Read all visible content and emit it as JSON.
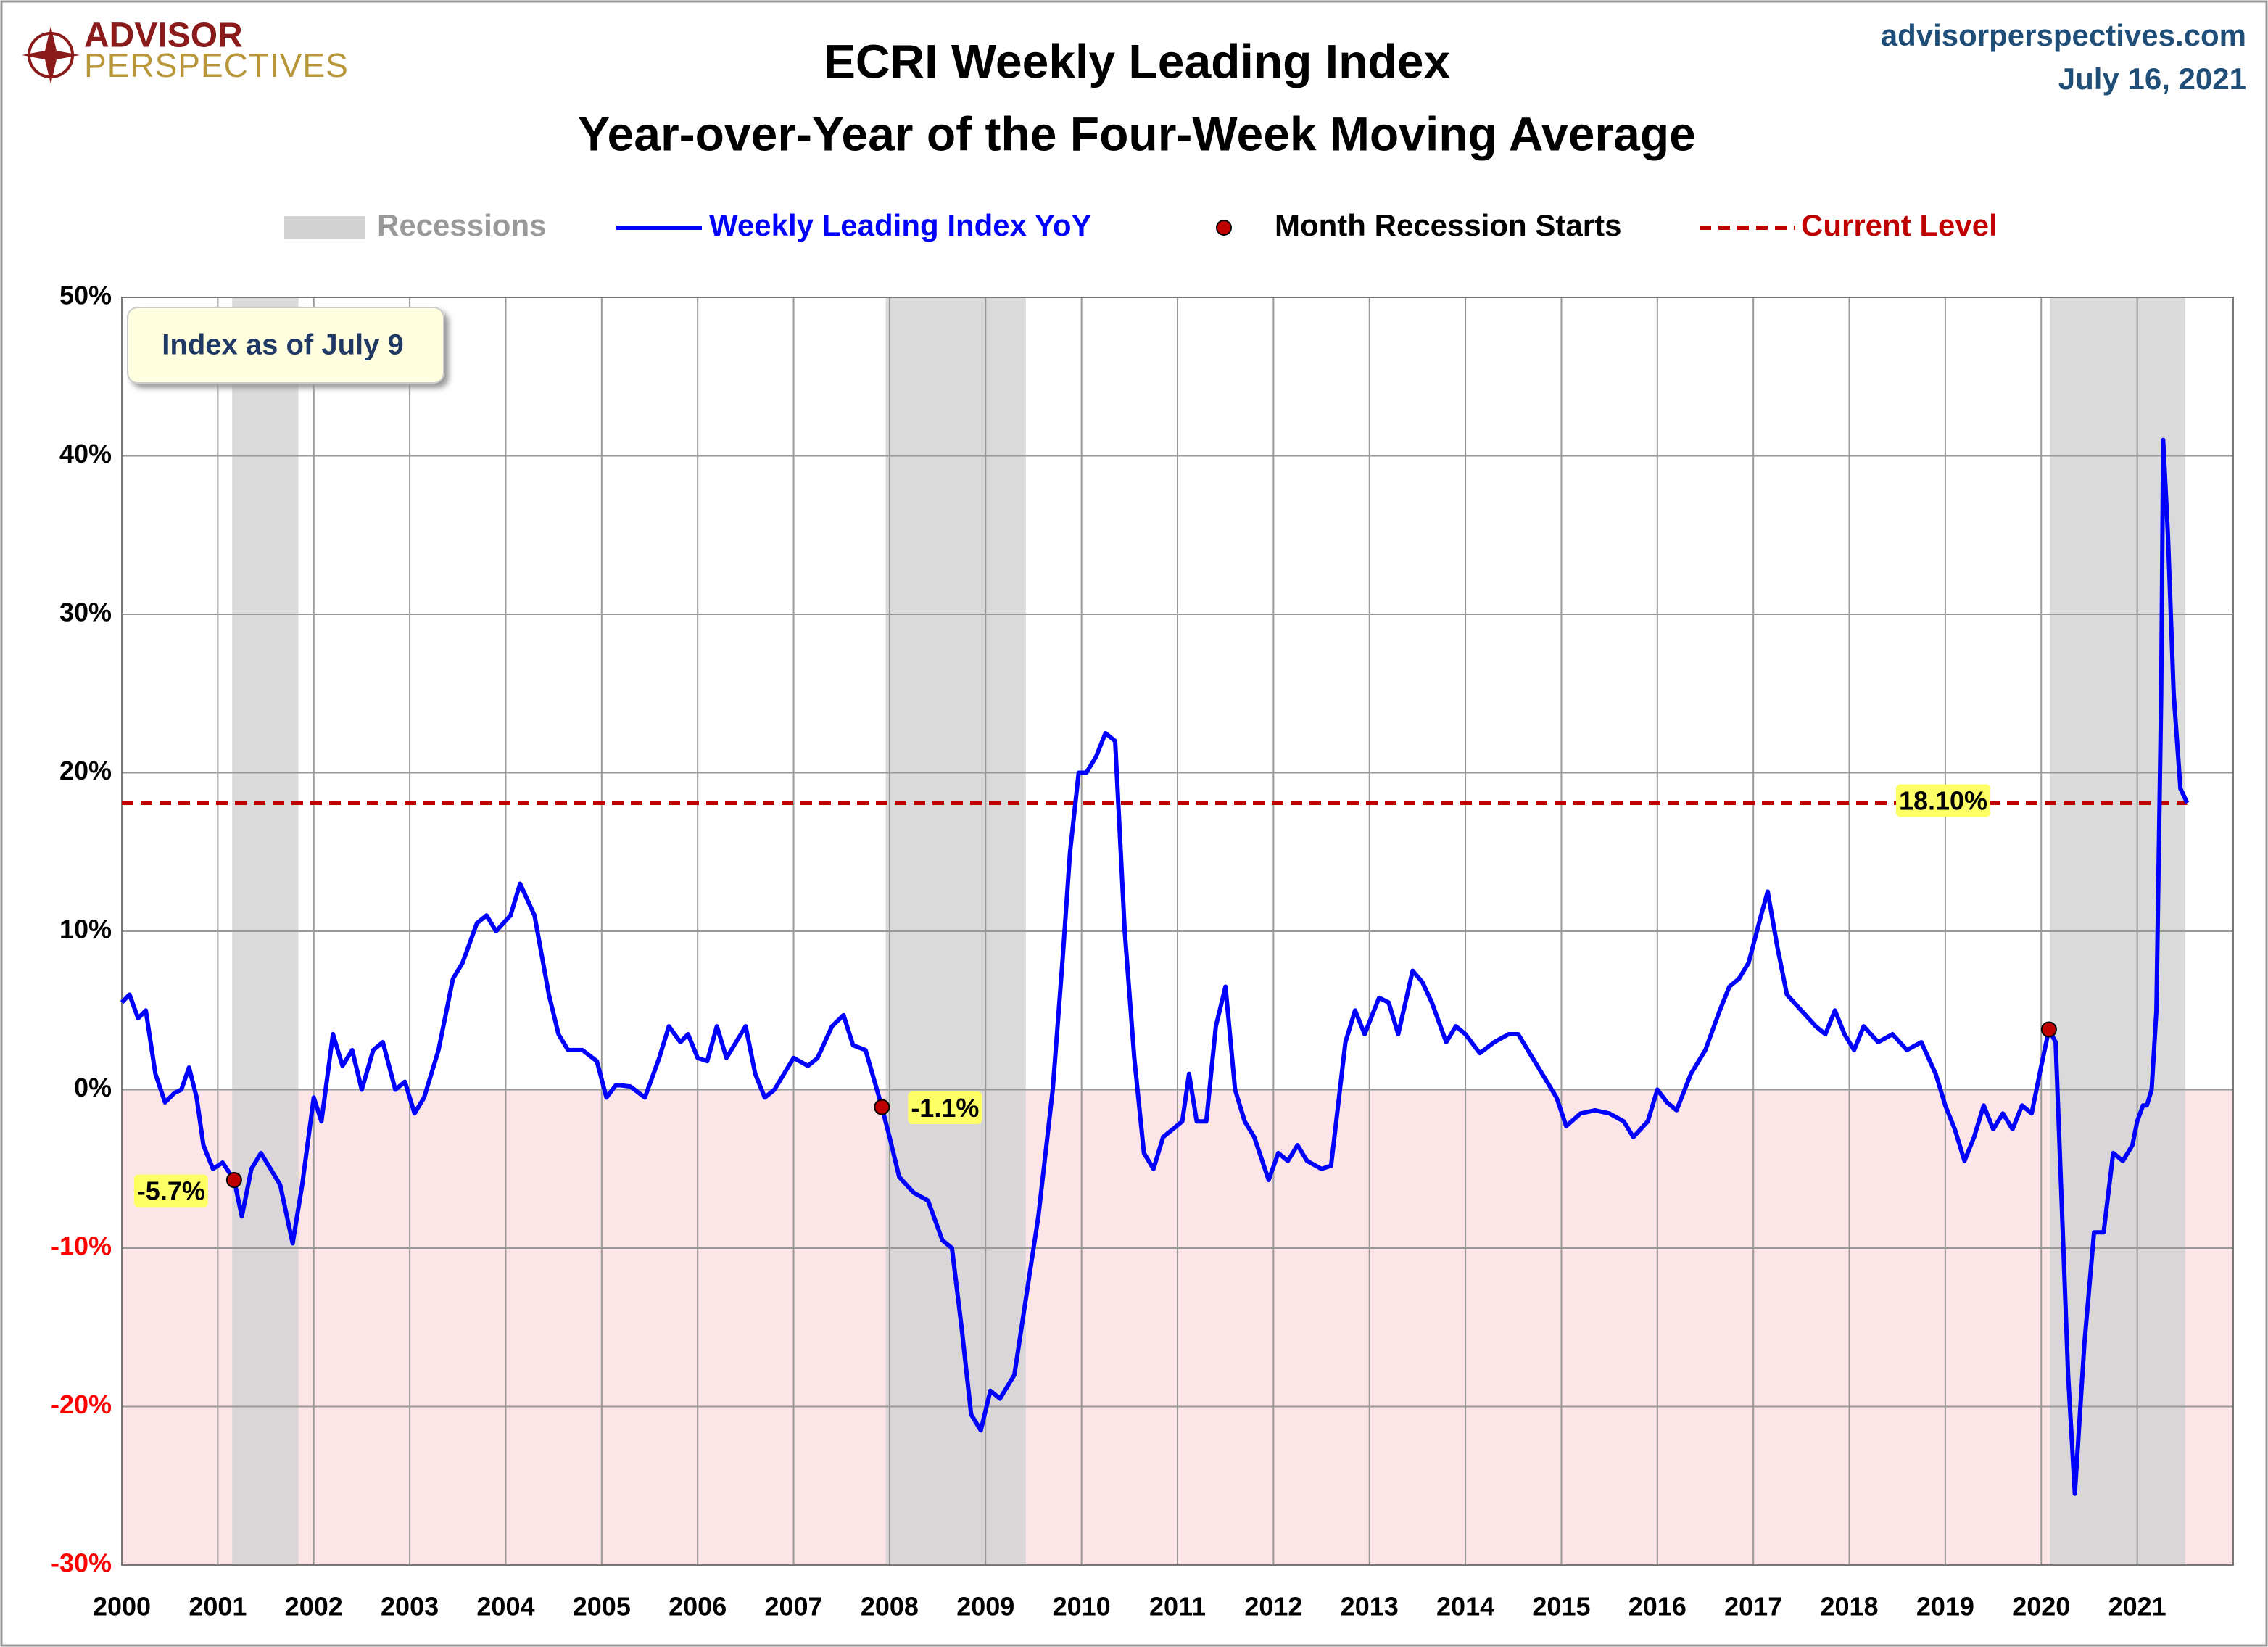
{
  "logo": {
    "line1": "ADVISOR",
    "line2": "PERSPECTIVES"
  },
  "site": "advisorperspectives.com",
  "date": "July 16, 2021",
  "chart_data": {
    "type": "line",
    "title": "ECRI Weekly Leading Index",
    "subtitle": "Year-over-Year of the Four-Week Moving Average",
    "annotation": "Index as of July 9",
    "xlim": [
      2000,
      2022
    ],
    "xticks": [
      2000,
      2001,
      2002,
      2003,
      2004,
      2005,
      2006,
      2007,
      2008,
      2009,
      2010,
      2011,
      2012,
      2013,
      2014,
      2015,
      2016,
      2017,
      2018,
      2019,
      2020,
      2021
    ],
    "ylim": [
      -30,
      50
    ],
    "yticks": [
      {
        "value": -30,
        "label": "-30%"
      },
      {
        "value": -20,
        "label": "-20%"
      },
      {
        "value": -10,
        "label": "-10%"
      },
      {
        "value": 0,
        "label": "0%"
      },
      {
        "value": 10,
        "label": "10%"
      },
      {
        "value": 20,
        "label": "20%"
      },
      {
        "value": 30,
        "label": "30%"
      },
      {
        "value": 40,
        "label": "40%"
      },
      {
        "value": 50,
        "label": "50%"
      }
    ],
    "negative_tick_color": "#ff0000",
    "negative_region_color": "#fde4e6",
    "grid": true,
    "recessions": {
      "name": "Recessions",
      "color": "#d3d3d3",
      "ranges": [
        [
          2001.15,
          2001.84
        ],
        [
          2007.96,
          2009.42
        ],
        [
          2020.09,
          2021.5
        ]
      ]
    },
    "series": [
      {
        "name": "Weekly Leading Index YoY",
        "color": "#0000ff",
        "x": [
          2000.0,
          2000.08,
          2000.17,
          2000.25,
          2000.35,
          2000.45,
          2000.55,
          2000.62,
          2000.7,
          2000.78,
          2000.85,
          2000.95,
          2001.05,
          2001.17,
          2001.25,
          2001.35,
          2001.45,
          2001.55,
          2001.65,
          2001.78,
          2001.88,
          2002.0,
          2002.08,
          2002.2,
          2002.3,
          2002.4,
          2002.5,
          2002.62,
          2002.72,
          2002.85,
          2002.95,
          2003.05,
          2003.15,
          2003.3,
          2003.45,
          2003.55,
          2003.7,
          2003.8,
          2003.9,
          2004.05,
          2004.15,
          2004.3,
          2004.45,
          2004.55,
          2004.65,
          2004.8,
          2004.95,
          2005.05,
          2005.15,
          2005.3,
          2005.45,
          2005.6,
          2005.7,
          2005.82,
          2005.9,
          2006.0,
          2006.1,
          2006.2,
          2006.3,
          2006.4,
          2006.5,
          2006.6,
          2006.7,
          2006.8,
          2006.9,
          2007.0,
          2007.15,
          2007.25,
          2007.4,
          2007.52,
          2007.62,
          2007.75,
          2007.92,
          2008.0,
          2008.1,
          2008.25,
          2008.4,
          2008.55,
          2008.65,
          2008.75,
          2008.85,
          2008.95,
          2009.05,
          2009.15,
          2009.3,
          2009.45,
          2009.55,
          2009.7,
          2009.8,
          2009.88,
          2009.97,
          2010.05,
          2010.15,
          2010.25,
          2010.35,
          2010.45,
          2010.55,
          2010.65,
          2010.75,
          2010.85,
          2010.95,
          2011.05,
          2011.12,
          2011.2,
          2011.3,
          2011.4,
          2011.5,
          2011.6,
          2011.7,
          2011.8,
          2011.95,
          2012.05,
          2012.15,
          2012.25,
          2012.35,
          2012.5,
          2012.6,
          2012.75,
          2012.85,
          2012.95,
          2013.1,
          2013.2,
          2013.3,
          2013.45,
          2013.55,
          2013.65,
          2013.8,
          2013.9,
          2014.0,
          2014.15,
          2014.3,
          2014.45,
          2014.55,
          2014.7,
          2014.85,
          2014.95,
          2015.05,
          2015.2,
          2015.35,
          2015.5,
          2015.65,
          2015.75,
          2015.9,
          2016.0,
          2016.1,
          2016.2,
          2016.35,
          2016.5,
          2016.65,
          2016.75,
          2016.85,
          2016.95,
          2017.08,
          2017.15,
          2017.25,
          2017.35,
          2017.5,
          2017.65,
          2017.75,
          2017.85,
          2017.95,
          2018.05,
          2018.15,
          2018.3,
          2018.45,
          2018.6,
          2018.75,
          2018.9,
          2019.0,
          2019.1,
          2019.2,
          2019.3,
          2019.4,
          2019.5,
          2019.6,
          2019.7,
          2019.8,
          2019.9,
          2020.0,
          2020.08,
          2020.15,
          2020.2,
          2020.28,
          2020.35,
          2020.45,
          2020.55,
          2020.65,
          2020.75,
          2020.85,
          2020.95,
          2021.0,
          2021.06,
          2021.1,
          2021.15,
          2021.2,
          2021.25,
          2021.27,
          2021.32,
          2021.38,
          2021.45,
          2021.52
        ],
        "values": [
          5.5,
          6.0,
          4.5,
          5.0,
          1.0,
          -0.8,
          -0.2,
          0,
          1.4,
          -0.5,
          -3.5,
          -5.0,
          -4.6,
          -5.7,
          -8.0,
          -5.0,
          -4.0,
          -5.0,
          -6.0,
          -9.7,
          -6.0,
          -0.5,
          -2.0,
          3.5,
          1.5,
          2.5,
          0,
          2.5,
          3.0,
          0,
          0.5,
          -1.5,
          -0.5,
          2.5,
          7.0,
          8,
          10.5,
          11,
          10,
          11,
          13,
          11,
          6,
          3.5,
          2.5,
          2.5,
          1.8,
          -0.5,
          0.3,
          0.2,
          -0.5,
          2,
          4,
          3,
          3.5,
          2,
          1.8,
          4,
          2,
          3,
          4,
          1,
          -0.5,
          0,
          1,
          2,
          1.5,
          2,
          4,
          4.7,
          2.8,
          2.5,
          -1.1,
          -3,
          -5.5,
          -6.5,
          -7.0,
          -9.5,
          -10,
          -15,
          -20.5,
          -21.5,
          -19,
          -19.5,
          -18,
          -12,
          -8,
          0,
          8,
          15,
          20,
          20,
          21,
          22.5,
          22,
          10,
          2,
          -4,
          -5,
          -3,
          -2.5,
          -2,
          1,
          -2,
          -2,
          4,
          6.5,
          0,
          -2,
          -3,
          -5.7,
          -4,
          -4.5,
          -3.5,
          -4.5,
          -5,
          -4.8,
          3,
          5,
          3.5,
          5.8,
          5.5,
          3.5,
          7.5,
          6.8,
          5.5,
          3,
          4,
          3.5,
          2.3,
          3,
          3.5,
          3.5,
          2,
          0.5,
          -0.5,
          -2.3,
          -1.5,
          -1.3,
          -1.5,
          -2,
          -3,
          -2,
          0,
          -0.8,
          -1.3,
          1,
          2.5,
          5,
          6.5,
          7,
          8,
          11,
          12.5,
          9,
          6,
          5,
          4,
          3.5,
          5,
          3.5,
          2.5,
          4,
          3,
          3.5,
          2.5,
          3,
          1,
          -1,
          -2.5,
          -4.5,
          -3,
          -1,
          -2.5,
          -1.5,
          -2.5,
          -1,
          -1.5,
          1.5,
          3.8,
          3,
          -5,
          -18,
          -25.5,
          -16,
          -9,
          -9,
          -4,
          -4.5,
          -3.5,
          -2,
          -1,
          -1,
          0,
          5,
          25,
          41,
          35,
          25,
          19,
          18.1
        ]
      }
    ],
    "recession_starts": {
      "name": "Month Recession Starts",
      "color": "#c00000",
      "x": [
        2001.17,
        2007.92,
        2020.08
      ],
      "values": [
        -5.7,
        -1.1,
        3.8
      ],
      "value_labels": [
        "-5.7%",
        "-1.1%",
        null
      ]
    },
    "current_level": {
      "name": "Current Level",
      "color": "#c00000",
      "value": 18.1,
      "value_label": "18.10%"
    }
  }
}
